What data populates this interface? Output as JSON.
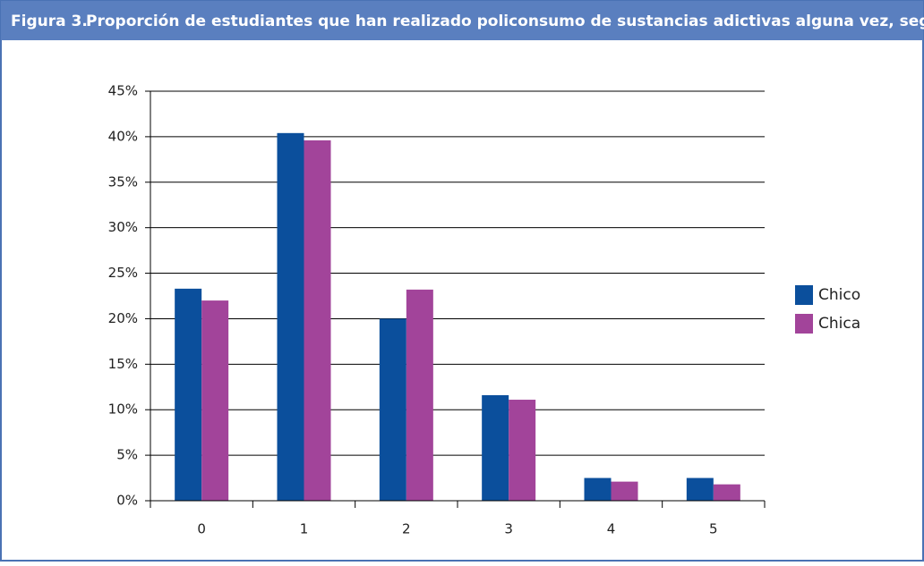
{
  "chart_data": {
    "type": "bar",
    "figure_label": "Figura 3.",
    "title": "Proporción de estudiantes que han realizado policonsumo de sustancias adictivas alguna vez, según el sexo",
    "categories": [
      "0",
      "1",
      "2",
      "3",
      "4",
      "5"
    ],
    "series": [
      {
        "name": "Chico",
        "color": "#0b4f9c",
        "values": [
          23.3,
          40.4,
          20.0,
          11.6,
          2.5,
          2.5
        ]
      },
      {
        "name": "Chica",
        "color": "#a2449a",
        "values": [
          22.0,
          39.6,
          23.2,
          11.1,
          2.1,
          1.8
        ]
      }
    ],
    "ylim": [
      0,
      45
    ],
    "yticks": [
      {
        "value": 0,
        "label": "0%"
      },
      {
        "value": 5,
        "label": "5%"
      },
      {
        "value": 10,
        "label": "10%"
      },
      {
        "value": 15,
        "label": "15%"
      },
      {
        "value": 20,
        "label": "20%"
      },
      {
        "value": 25,
        "label": "25%"
      },
      {
        "value": 30,
        "label": "30%"
      },
      {
        "value": 35,
        "label": "35%"
      },
      {
        "value": 40,
        "label": "40%"
      },
      {
        "value": 45,
        "label": "45%"
      }
    ],
    "grid": true,
    "legend": "right"
  }
}
